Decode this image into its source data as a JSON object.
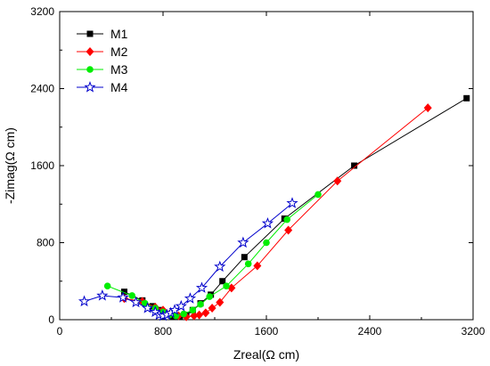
{
  "chart_data": {
    "type": "scatter",
    "title": "",
    "xlabel": "Zreal(Ω cm)",
    "ylabel": "-Zimag(Ω cm)",
    "xlim": [
      0,
      3200
    ],
    "ylim": [
      0,
      3200
    ],
    "xticks": [
      "0",
      "800",
      "1600",
      "2400",
      "3200"
    ],
    "yticks": [
      "0",
      "800",
      "1600",
      "2400",
      "3200"
    ],
    "grid": false,
    "legend_position": "top-left",
    "series": [
      {
        "name": "M1",
        "color": "#000000",
        "marker": "square",
        "x": [
          500,
          640,
          720,
          780,
          830,
          880,
          930,
          980,
          1030,
          1090,
          1170,
          1260,
          1430,
          1740,
          2280,
          3150
        ],
        "y": [
          290,
          200,
          140,
          100,
          60,
          30,
          30,
          50,
          100,
          170,
          260,
          400,
          650,
          1050,
          1600,
          2300
        ]
      },
      {
        "name": "M2",
        "color": "#ff0000",
        "marker": "diamond",
        "x": [
          500,
          640,
          740,
          800,
          860,
          920,
          980,
          1040,
          1080,
          1130,
          1180,
          1240,
          1330,
          1530,
          1770,
          2150,
          2850
        ],
        "y": [
          220,
          190,
          130,
          100,
          70,
          40,
          30,
          40,
          50,
          70,
          120,
          180,
          330,
          560,
          930,
          1440,
          2200
        ]
      },
      {
        "name": "M3",
        "color": "#00ee00",
        "marker": "circle",
        "x": [
          370,
          560,
          660,
          740,
          800,
          850,
          900,
          960,
          1030,
          1090,
          1160,
          1290,
          1460,
          1600,
          1760,
          2000
        ],
        "y": [
          350,
          250,
          170,
          120,
          80,
          50,
          40,
          60,
          100,
          160,
          240,
          350,
          580,
          800,
          1040,
          1300
        ]
      },
      {
        "name": "M4",
        "color": "#0000cc",
        "marker": "star",
        "x": [
          190,
          330,
          490,
          590,
          680,
          740,
          770,
          800,
          830,
          860,
          890,
          940,
          1010,
          1100,
          1240,
          1420,
          1610,
          1800
        ],
        "y": [
          190,
          250,
          230,
          180,
          120,
          80,
          50,
          40,
          50,
          70,
          100,
          140,
          220,
          330,
          550,
          800,
          1000,
          1210
        ]
      }
    ]
  }
}
